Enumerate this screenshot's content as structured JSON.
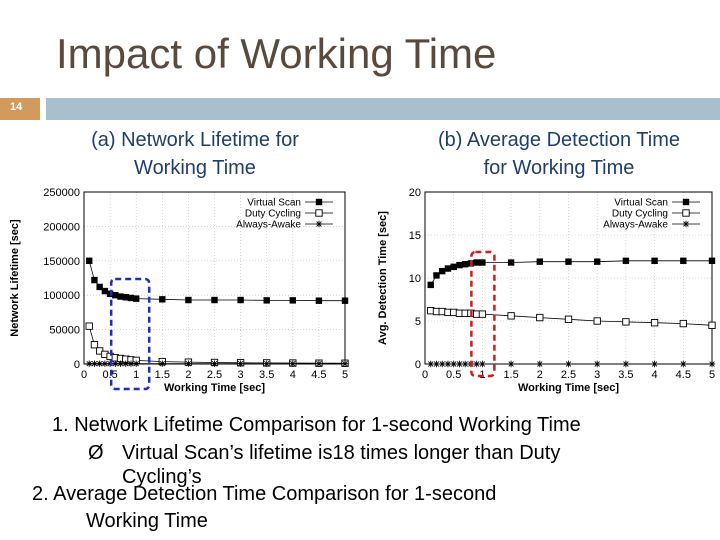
{
  "slide": {
    "title": "Impact of Working Time",
    "number": "14",
    "caption_a": [
      "(a) Network Lifetime for",
      "Working Time"
    ],
    "caption_b": [
      "(b) Average Detection Time",
      "for Working Time"
    ],
    "bullets": {
      "b1": "1. Network Lifetime Comparison for 1-second Working Time",
      "b1_sub_arrow": "Ø",
      "b1_sub_1": "Virtual Scan’s lifetime is18 times longer than Duty",
      "b1_sub_2": "Cycling’s",
      "b2_1": "2. Average Detection Time Comparison for 1-second",
      "b2_2": "Working Time"
    }
  },
  "colors": {
    "highlight_a": "#1a2fbf",
    "highlight_b": "#d01c1c"
  },
  "chart_data": [
    {
      "type": "line",
      "title": "(a) Network Lifetime for Working Time",
      "xlabel": "Working Time [sec]",
      "ylabel": "Network Lifetime [sec]",
      "xlim": [
        0,
        5
      ],
      "ylim": [
        0,
        250000
      ],
      "xticks": [
        0,
        0.5,
        1,
        1.5,
        2,
        2.5,
        3,
        3.5,
        4,
        4.5,
        5
      ],
      "xtick_labels": [
        "0",
        "0.5",
        "1",
        "1.5",
        "2",
        "2.5",
        "3",
        "3.5",
        "4",
        "4.5",
        "5"
      ],
      "yticks": [
        0,
        50000,
        100000,
        150000,
        200000,
        250000
      ],
      "ytick_labels": [
        "0",
        "50000",
        "100000",
        "150000",
        "200000",
        "250000"
      ],
      "grid": true,
      "legend_position": "top-right",
      "highlight_x": 1,
      "series": [
        {
          "name": "Virtual Scan",
          "marker": "filled-square",
          "x": [
            0.1,
            0.2,
            0.3,
            0.4,
            0.5,
            0.6,
            0.7,
            0.8,
            0.9,
            1,
            1.5,
            2,
            2.5,
            3,
            3.5,
            4,
            4.5,
            5
          ],
          "y": [
            150000,
            122000,
            112000,
            106000,
            102000,
            100000,
            98000,
            97000,
            96000,
            95000,
            94000,
            93000,
            93000,
            93000,
            92500,
            92500,
            92000,
            92000
          ]
        },
        {
          "name": "Duty Cycling",
          "marker": "open-square",
          "x": [
            0.1,
            0.2,
            0.3,
            0.4,
            0.5,
            0.6,
            0.7,
            0.8,
            0.9,
            1,
            1.5,
            2,
            2.5,
            3,
            3.5,
            4,
            4.5,
            5
          ],
          "y": [
            55000,
            28000,
            19000,
            14000,
            11000,
            9000,
            8000,
            7000,
            6000,
            5300,
            3500,
            2700,
            2200,
            1800,
            1600,
            1400,
            1200,
            1100
          ]
        },
        {
          "name": "Always-Awake",
          "marker": "asterisk",
          "x": [
            0.1,
            0.2,
            0.3,
            0.4,
            0.5,
            0.6,
            0.7,
            0.8,
            0.9,
            1,
            1.5,
            2,
            2.5,
            3,
            3.5,
            4,
            4.5,
            5
          ],
          "y": [
            500,
            500,
            500,
            500,
            500,
            500,
            500,
            500,
            500,
            500,
            500,
            500,
            500,
            500,
            500,
            500,
            500,
            500
          ]
        }
      ]
    },
    {
      "type": "line",
      "title": "(b) Average Detection Time for Working Time",
      "xlabel": "Working Time [sec]",
      "ylabel": "Avg. Detection Time [sec]",
      "xlim": [
        0,
        5
      ],
      "ylim": [
        0,
        20
      ],
      "xticks": [
        0,
        0.5,
        1,
        1.5,
        2,
        2.5,
        3,
        3.5,
        4,
        4.5,
        5
      ],
      "xtick_labels": [
        "0",
        "0.5",
        "1",
        "1.5",
        "2",
        "2.5",
        "3",
        "3.5",
        "4",
        "4.5",
        "5"
      ],
      "yticks": [
        0,
        5,
        10,
        15,
        20
      ],
      "ytick_labels": [
        "0",
        "5",
        "10",
        "15",
        "20"
      ],
      "grid": true,
      "legend_position": "top-right",
      "highlight_x": 1,
      "series": [
        {
          "name": "Virtual Scan",
          "marker": "filled-square",
          "x": [
            0.1,
            0.2,
            0.3,
            0.4,
            0.5,
            0.6,
            0.7,
            0.8,
            0.9,
            1,
            1.5,
            2,
            2.5,
            3,
            3.5,
            4,
            4.5,
            5
          ],
          "y": [
            9.2,
            10.3,
            10.8,
            11.1,
            11.3,
            11.5,
            11.6,
            11.7,
            11.8,
            11.8,
            11.8,
            11.9,
            11.9,
            11.9,
            12.0,
            12.0,
            12.0,
            12.0
          ]
        },
        {
          "name": "Duty Cycling",
          "marker": "open-square",
          "x": [
            0.1,
            0.2,
            0.3,
            0.4,
            0.5,
            0.6,
            0.7,
            0.8,
            0.9,
            1,
            1.5,
            2,
            2.5,
            3,
            3.5,
            4,
            4.5,
            5
          ],
          "y": [
            6.2,
            6.1,
            6.1,
            6.0,
            6.0,
            5.9,
            5.9,
            5.9,
            5.8,
            5.8,
            5.6,
            5.4,
            5.2,
            5.0,
            4.9,
            4.8,
            4.7,
            4.5
          ]
        },
        {
          "name": "Always-Awake",
          "marker": "asterisk",
          "x": [
            0.1,
            0.2,
            0.3,
            0.4,
            0.5,
            0.6,
            0.7,
            0.8,
            0.9,
            1,
            1.5,
            2,
            2.5,
            3,
            3.5,
            4,
            4.5,
            5
          ],
          "y": [
            0,
            0,
            0,
            0,
            0,
            0,
            0,
            0,
            0,
            0,
            0,
            0,
            0,
            0,
            0,
            0,
            0,
            0
          ]
        }
      ]
    }
  ]
}
